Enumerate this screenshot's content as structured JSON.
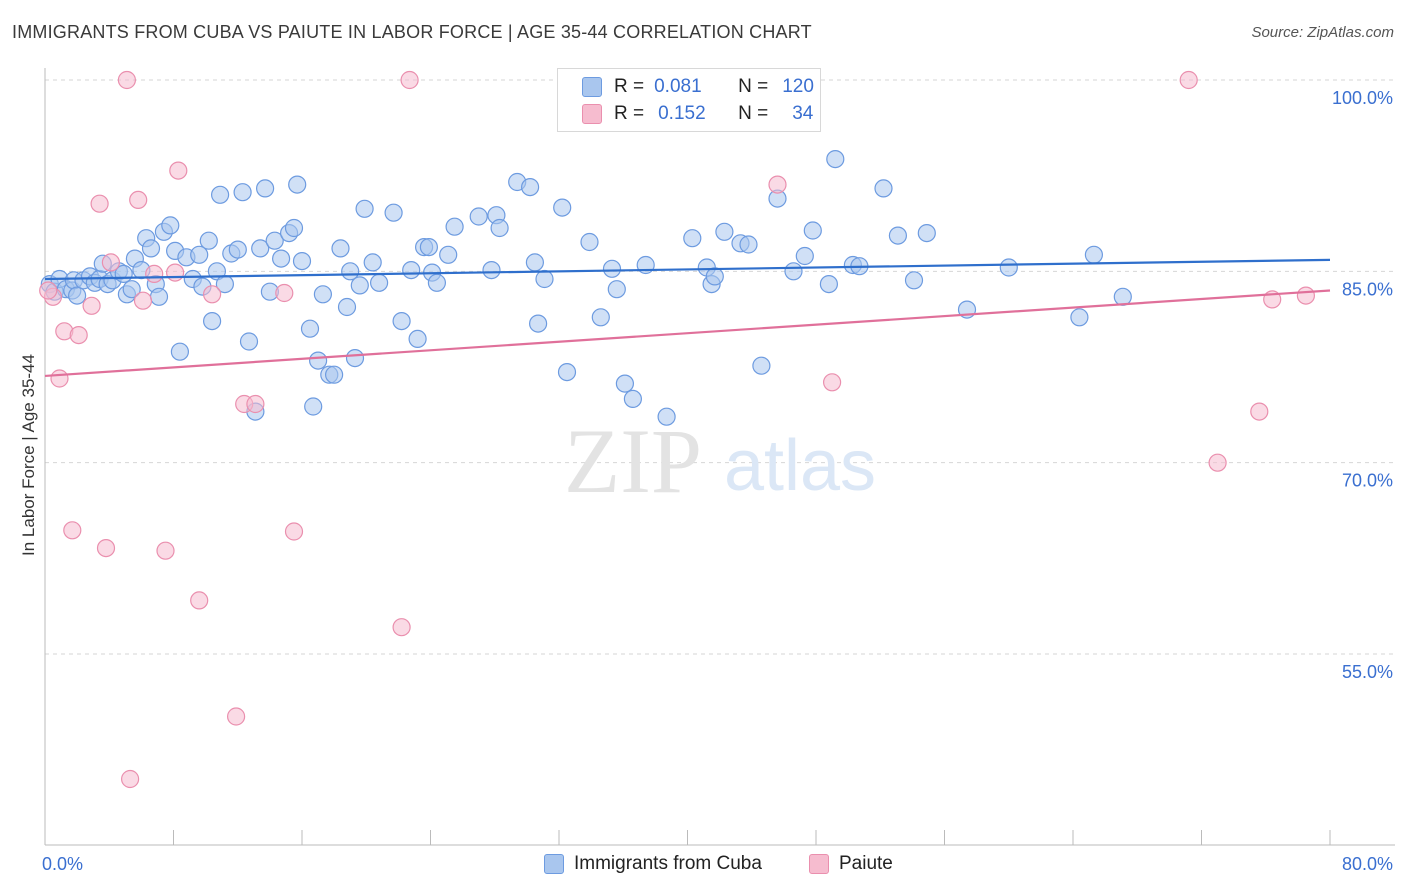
{
  "title": "IMMIGRANTS FROM CUBA VS PAIUTE IN LABOR FORCE | AGE 35-44 CORRELATION CHART",
  "source": "Source: ZipAtlas.com",
  "watermark": {
    "zip": "ZIP",
    "atlas": "atlas"
  },
  "legend": {
    "r_label": "R =",
    "n_label": "N =",
    "rows": [
      {
        "r": "0.081",
        "n": "120"
      },
      {
        "r": "0.152",
        "n": "34"
      }
    ]
  },
  "bottom_legend": {
    "series_a": "Immigrants from Cuba",
    "series_b": "Paiute"
  },
  "colors": {
    "blue_fill": "#a9c6ee",
    "blue_stroke": "#6d9be0",
    "blue_line": "#2f6fcc",
    "pink_fill": "#f6bccf",
    "pink_stroke": "#ea8fae",
    "pink_line": "#e0709a",
    "tick_label": "#3a6fd0",
    "grid": "#d6d6d6"
  },
  "chart_data": {
    "type": "scatter",
    "title": "IMMIGRANTS FROM CUBA VS PAIUTE IN LABOR FORCE | AGE 35-44 CORRELATION CHART",
    "xlabel": "",
    "ylabel": "In Labor Force | Age 35-44",
    "xlim": [
      0,
      80
    ],
    "ylim": [
      40,
      101.5
    ],
    "x_tick_labels": [
      "0.0%",
      "80.0%"
    ],
    "y_ticks": [
      55,
      70,
      85,
      100
    ],
    "y_tick_labels": [
      "55.0%",
      "70.0%",
      "85.0%",
      "100.0%"
    ],
    "grid": "horizontal dashed",
    "legend_position": "top-center",
    "series": [
      {
        "name": "Immigrants from Cuba",
        "color": "#a9c6ee",
        "trend": {
          "x": [
            0,
            80
          ],
          "y": [
            84.4,
            85.9
          ]
        },
        "points": [
          [
            0.3,
            84.0
          ],
          [
            0.6,
            83.4
          ],
          [
            0.9,
            84.4
          ],
          [
            1.3,
            83.6
          ],
          [
            1.7,
            83.5
          ],
          [
            1.8,
            84.3
          ],
          [
            2.0,
            83.1
          ],
          [
            2.4,
            84.3
          ],
          [
            2.8,
            84.6
          ],
          [
            3.1,
            84.1
          ],
          [
            3.4,
            84.4
          ],
          [
            3.6,
            85.6
          ],
          [
            3.9,
            84.0
          ],
          [
            4.2,
            84.3
          ],
          [
            4.6,
            85.0
          ],
          [
            4.9,
            84.8
          ],
          [
            5.1,
            83.2
          ],
          [
            5.4,
            83.6
          ],
          [
            5.6,
            86.0
          ],
          [
            6.0,
            85.1
          ],
          [
            6.3,
            87.6
          ],
          [
            6.6,
            86.8
          ],
          [
            6.9,
            84.0
          ],
          [
            7.1,
            83.0
          ],
          [
            7.4,
            88.1
          ],
          [
            7.8,
            88.6
          ],
          [
            8.1,
            86.6
          ],
          [
            8.4,
            78.7
          ],
          [
            8.8,
            86.1
          ],
          [
            9.2,
            84.4
          ],
          [
            9.6,
            86.3
          ],
          [
            9.8,
            83.8
          ],
          [
            10.2,
            87.4
          ],
          [
            10.4,
            81.1
          ],
          [
            10.7,
            85.0
          ],
          [
            10.9,
            91.0
          ],
          [
            11.2,
            84.0
          ],
          [
            11.6,
            86.4
          ],
          [
            12.0,
            86.7
          ],
          [
            12.3,
            91.2
          ],
          [
            12.7,
            79.5
          ],
          [
            13.1,
            74.0
          ],
          [
            13.4,
            86.8
          ],
          [
            13.7,
            91.5
          ],
          [
            14.0,
            83.4
          ],
          [
            14.3,
            87.4
          ],
          [
            14.7,
            86.0
          ],
          [
            15.2,
            88.0
          ],
          [
            15.5,
            88.4
          ],
          [
            15.7,
            91.8
          ],
          [
            16.0,
            85.8
          ],
          [
            16.5,
            80.5
          ],
          [
            16.7,
            74.4
          ],
          [
            17.0,
            78.0
          ],
          [
            17.3,
            83.2
          ],
          [
            17.7,
            76.9
          ],
          [
            18.0,
            76.9
          ],
          [
            18.4,
            86.8
          ],
          [
            18.8,
            82.2
          ],
          [
            19.0,
            85.0
          ],
          [
            19.3,
            78.2
          ],
          [
            19.6,
            83.9
          ],
          [
            19.9,
            89.9
          ],
          [
            20.4,
            85.7
          ],
          [
            20.8,
            84.1
          ],
          [
            21.7,
            89.6
          ],
          [
            22.2,
            81.1
          ],
          [
            22.8,
            85.1
          ],
          [
            23.2,
            79.7
          ],
          [
            23.6,
            86.9
          ],
          [
            23.9,
            86.9
          ],
          [
            24.1,
            84.9
          ],
          [
            24.4,
            84.1
          ],
          [
            25.1,
            86.3
          ],
          [
            25.5,
            88.5
          ],
          [
            27.0,
            89.3
          ],
          [
            27.8,
            85.1
          ],
          [
            28.1,
            89.4
          ],
          [
            28.3,
            88.4
          ],
          [
            29.4,
            92.0
          ],
          [
            30.2,
            91.6
          ],
          [
            30.5,
            85.7
          ],
          [
            30.7,
            80.9
          ],
          [
            31.1,
            84.4
          ],
          [
            32.2,
            90.0
          ],
          [
            32.5,
            77.1
          ],
          [
            33.9,
            87.3
          ],
          [
            34.6,
            81.4
          ],
          [
            35.3,
            85.2
          ],
          [
            35.6,
            83.6
          ],
          [
            36.1,
            76.2
          ],
          [
            36.6,
            75.0
          ],
          [
            37.4,
            85.5
          ],
          [
            38.7,
            73.6
          ],
          [
            40.3,
            87.6
          ],
          [
            41.2,
            85.3
          ],
          [
            41.5,
            84.0
          ],
          [
            41.7,
            84.6
          ],
          [
            42.3,
            88.1
          ],
          [
            43.3,
            87.2
          ],
          [
            43.8,
            87.1
          ],
          [
            44.6,
            77.6
          ],
          [
            45.6,
            90.7
          ],
          [
            46.6,
            85.0
          ],
          [
            47.3,
            86.2
          ],
          [
            47.8,
            88.2
          ],
          [
            48.8,
            84.0
          ],
          [
            49.2,
            93.8
          ],
          [
            50.3,
            85.5
          ],
          [
            50.7,
            85.4
          ],
          [
            52.2,
            91.5
          ],
          [
            53.1,
            87.8
          ],
          [
            54.1,
            84.3
          ],
          [
            54.9,
            88.0
          ],
          [
            57.4,
            82.0
          ],
          [
            60.0,
            85.3
          ],
          [
            64.4,
            81.4
          ],
          [
            65.3,
            86.3
          ],
          [
            67.1,
            83.0
          ],
          [
            37.6,
            100.0
          ]
        ]
      },
      {
        "name": "Paiute",
        "color": "#f6bccf",
        "trend": {
          "x": [
            0,
            80
          ],
          "y": [
            76.8,
            83.5
          ]
        },
        "points": [
          [
            0.5,
            83.0
          ],
          [
            0.9,
            76.6
          ],
          [
            1.2,
            80.3
          ],
          [
            1.7,
            64.7
          ],
          [
            2.1,
            80.0
          ],
          [
            2.9,
            82.3
          ],
          [
            3.4,
            90.3
          ],
          [
            3.8,
            63.3
          ],
          [
            4.1,
            85.7
          ],
          [
            5.1,
            100.0
          ],
          [
            5.3,
            45.2
          ],
          [
            5.8,
            90.6
          ],
          [
            6.1,
            82.7
          ],
          [
            6.8,
            84.8
          ],
          [
            7.5,
            63.1
          ],
          [
            8.1,
            84.9
          ],
          [
            8.3,
            92.9
          ],
          [
            9.6,
            59.2
          ],
          [
            10.4,
            83.2
          ],
          [
            11.9,
            50.1
          ],
          [
            12.4,
            74.6
          ],
          [
            13.1,
            74.6
          ],
          [
            14.9,
            83.3
          ],
          [
            15.5,
            64.6
          ],
          [
            22.2,
            57.1
          ],
          [
            22.7,
            100.0
          ],
          [
            45.6,
            91.8
          ],
          [
            49.0,
            76.3
          ],
          [
            71.2,
            100.0
          ],
          [
            73.0,
            70.0
          ],
          [
            75.6,
            74.0
          ],
          [
            76.4,
            82.8
          ],
          [
            78.5,
            83.1
          ],
          [
            0.2,
            83.5
          ]
        ]
      }
    ]
  }
}
